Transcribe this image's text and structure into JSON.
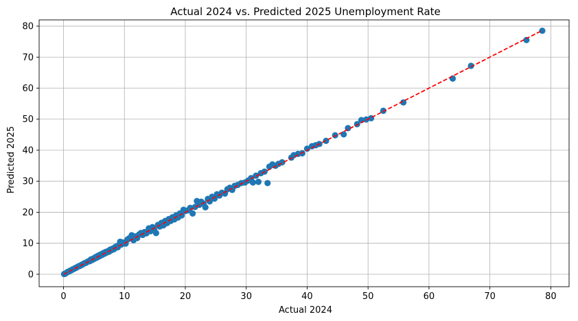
{
  "chart_data": {
    "type": "scatter",
    "title": "Actual 2024 vs. Predicted 2025 Unemployment Rate",
    "xlabel": "Actual 2024",
    "ylabel": "Predicted 2025",
    "xlim": [
      -4,
      83
    ],
    "ylim": [
      -4,
      82
    ],
    "xticks": [
      0,
      10,
      20,
      30,
      40,
      50,
      60,
      70,
      80
    ],
    "yticks": [
      0,
      10,
      20,
      30,
      40,
      50,
      60,
      70,
      80
    ],
    "grid": true,
    "colors": {
      "points": "#1f77b4",
      "reference_line": "#ff0000",
      "grid": "#b0b0b0"
    },
    "reference_line": {
      "style": "dashed",
      "x": [
        0,
        78.6
      ],
      "y": [
        0,
        78.6
      ]
    },
    "points": [
      [
        0.1,
        0.1
      ],
      [
        0.3,
        0.2
      ],
      [
        0.5,
        0.5
      ],
      [
        0.7,
        0.8
      ],
      [
        0.9,
        0.9
      ],
      [
        1.1,
        1.2
      ],
      [
        1.3,
        1.3
      ],
      [
        1.5,
        1.6
      ],
      [
        1.7,
        1.7
      ],
      [
        1.9,
        2.0
      ],
      [
        2.1,
        2.1
      ],
      [
        2.3,
        2.4
      ],
      [
        2.5,
        2.6
      ],
      [
        2.7,
        2.7
      ],
      [
        2.9,
        3.0
      ],
      [
        3.1,
        3.1
      ],
      [
        3.3,
        3.4
      ],
      [
        3.5,
        3.6
      ],
      [
        3.7,
        3.7
      ],
      [
        3.9,
        4.0
      ],
      [
        4.1,
        4.2
      ],
      [
        4.3,
        4.2
      ],
      [
        4.5,
        4.8
      ],
      [
        4.7,
        4.6
      ],
      [
        4.9,
        5.1
      ],
      [
        5.1,
        5.0
      ],
      [
        5.3,
        5.6
      ],
      [
        5.5,
        5.4
      ],
      [
        5.7,
        6.0
      ],
      [
        5.9,
        5.8
      ],
      [
        6.1,
        6.4
      ],
      [
        6.3,
        6.2
      ],
      [
        6.5,
        6.8
      ],
      [
        6.7,
        6.6
      ],
      [
        6.9,
        7.2
      ],
      [
        7.1,
        7.0
      ],
      [
        7.3,
        7.5
      ],
      [
        7.5,
        7.3
      ],
      [
        7.7,
        8.0
      ],
      [
        7.9,
        7.8
      ],
      [
        8.1,
        8.3
      ],
      [
        8.3,
        8.1
      ],
      [
        8.5,
        8.8
      ],
      [
        8.7,
        9.0
      ],
      [
        8.9,
        8.7
      ],
      [
        9.1,
        9.4
      ],
      [
        9.3,
        10.5
      ],
      [
        9.5,
        9.6
      ],
      [
        9.7,
        10.3
      ],
      [
        10.2,
        9.9
      ],
      [
        10.5,
        11.2
      ],
      [
        10.8,
        11.6
      ],
      [
        11.2,
        12.6
      ],
      [
        11.5,
        11.0
      ],
      [
        11.8,
        12.2
      ],
      [
        12.1,
        11.7
      ],
      [
        12.4,
        12.8
      ],
      [
        12.7,
        13.3
      ],
      [
        13.0,
        12.7
      ],
      [
        13.3,
        13.6
      ],
      [
        13.6,
        13.2
      ],
      [
        14.0,
        14.8
      ],
      [
        14.3,
        13.9
      ],
      [
        14.6,
        15.2
      ],
      [
        14.9,
        14.3
      ],
      [
        15.2,
        13.3
      ],
      [
        15.5,
        15.9
      ],
      [
        15.8,
        15.4
      ],
      [
        16.1,
        16.6
      ],
      [
        16.4,
        15.8
      ],
      [
        16.7,
        17.2
      ],
      [
        17.0,
        16.5
      ],
      [
        17.3,
        17.8
      ],
      [
        17.6,
        17.2
      ],
      [
        17.9,
        18.4
      ],
      [
        18.2,
        17.7
      ],
      [
        18.5,
        19.0
      ],
      [
        18.8,
        18.3
      ],
      [
        19.1,
        19.6
      ],
      [
        19.4,
        19.0
      ],
      [
        19.7,
        20.8
      ],
      [
        20.0,
        20.4
      ],
      [
        20.4,
        20.6
      ],
      [
        20.8,
        21.4
      ],
      [
        21.2,
        19.6
      ],
      [
        21.6,
        21.7
      ],
      [
        21.9,
        23.6
      ],
      [
        22.3,
        22.4
      ],
      [
        22.6,
        23.4
      ],
      [
        23.0,
        22.8
      ],
      [
        23.3,
        21.6
      ],
      [
        23.7,
        24.3
      ],
      [
        24.0,
        23.5
      ],
      [
        24.4,
        25.0
      ],
      [
        24.8,
        24.4
      ],
      [
        25.2,
        25.8
      ],
      [
        25.6,
        25.4
      ],
      [
        26.0,
        26.3
      ],
      [
        26.5,
        26.0
      ],
      [
        26.9,
        27.4
      ],
      [
        27.3,
        27.9
      ],
      [
        27.7,
        27.2
      ],
      [
        28.1,
        28.5
      ],
      [
        28.6,
        28.8
      ],
      [
        29.2,
        29.4
      ],
      [
        29.8,
        29.6
      ],
      [
        30.3,
        30.2
      ],
      [
        30.8,
        31.0
      ],
      [
        31.1,
        29.6
      ],
      [
        31.6,
        31.8
      ],
      [
        32.0,
        29.8
      ],
      [
        32.4,
        32.6
      ],
      [
        33.0,
        33.1
      ],
      [
        33.5,
        29.4
      ],
      [
        33.8,
        34.7
      ],
      [
        34.3,
        35.4
      ],
      [
        34.8,
        35.0
      ],
      [
        35.3,
        35.6
      ],
      [
        35.9,
        36.1
      ],
      [
        37.4,
        37.6
      ],
      [
        37.8,
        38.4
      ],
      [
        38.5,
        38.8
      ],
      [
        39.2,
        39.0
      ],
      [
        40.0,
        40.5
      ],
      [
        40.8,
        41.3
      ],
      [
        41.4,
        41.6
      ],
      [
        42.0,
        42.0
      ],
      [
        43.1,
        43.0
      ],
      [
        44.6,
        44.8
      ],
      [
        46.0,
        45.1
      ],
      [
        46.7,
        47.1
      ],
      [
        48.2,
        48.4
      ],
      [
        48.9,
        49.7
      ],
      [
        49.7,
        49.9
      ],
      [
        50.5,
        50.3
      ],
      [
        52.5,
        52.7
      ],
      [
        55.8,
        55.4
      ],
      [
        63.9,
        63.1
      ],
      [
        66.9,
        67.2
      ],
      [
        76.0,
        75.5
      ],
      [
        78.6,
        78.5
      ]
    ]
  }
}
